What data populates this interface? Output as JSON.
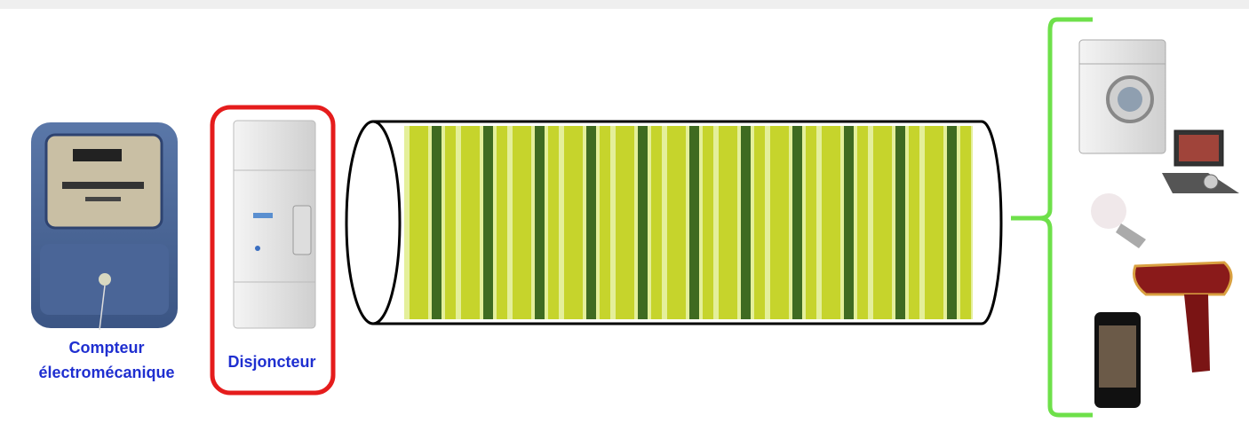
{
  "meter": {
    "label": [
      "Compteur",
      "électromécanique"
    ]
  },
  "breaker": {
    "label": "Disjoncteur"
  }
}
